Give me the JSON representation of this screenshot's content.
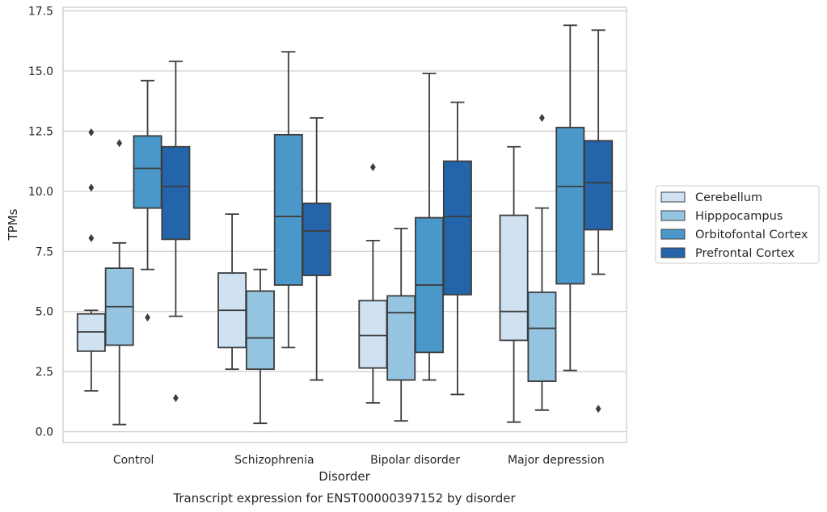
{
  "chart_data": {
    "type": "boxplot",
    "title": "Transcript expression for ENST00000397152 by disorder",
    "xlabel": "Disorder",
    "ylabel": "TPMs",
    "ylim": [
      -0.45,
      17.65
    ],
    "yticks": [
      0.0,
      2.5,
      5.0,
      7.5,
      10.0,
      12.5,
      15.0,
      17.5
    ],
    "ytick_labels": [
      "0.0",
      "2.5",
      "5.0",
      "7.5",
      "10.0",
      "12.5",
      "15.0",
      "17.5"
    ],
    "grid": "horizontal",
    "legend_position": "right",
    "categories": [
      "Control",
      "Schizophrenia",
      "Bipolar disorder",
      "Major depression"
    ],
    "series": [
      {
        "name": "Cerebellum",
        "color": "#d0e1f2",
        "boxes": [
          {
            "whislo": 1.7,
            "q1": 3.35,
            "med": 4.15,
            "q3": 4.9,
            "whishi": 5.05,
            "fliers": [
              8.05,
              10.15,
              12.45
            ]
          },
          {
            "whislo": 2.6,
            "q1": 3.5,
            "med": 5.05,
            "q3": 6.6,
            "whishi": 9.05,
            "fliers": []
          },
          {
            "whislo": 1.2,
            "q1": 2.65,
            "med": 4.0,
            "q3": 5.45,
            "whishi": 7.95,
            "fliers": [
              11.0
            ]
          },
          {
            "whislo": 0.4,
            "q1": 3.8,
            "med": 5.0,
            "q3": 9.0,
            "whishi": 11.85,
            "fliers": []
          }
        ]
      },
      {
        "name": "Hipppocampus",
        "color": "#94c4df",
        "boxes": [
          {
            "whislo": 0.3,
            "q1": 3.6,
            "med": 5.2,
            "q3": 6.8,
            "whishi": 7.85,
            "fliers": [
              12.0
            ]
          },
          {
            "whislo": 0.35,
            "q1": 2.6,
            "med": 3.9,
            "q3": 5.85,
            "whishi": 6.75,
            "fliers": []
          },
          {
            "whislo": 0.45,
            "q1": 2.15,
            "med": 4.95,
            "q3": 5.65,
            "whishi": 8.45,
            "fliers": []
          },
          {
            "whislo": 0.9,
            "q1": 2.1,
            "med": 4.3,
            "q3": 5.8,
            "whishi": 9.3,
            "fliers": [
              13.05
            ]
          }
        ]
      },
      {
        "name": "Orbitofontal Cortex",
        "color": "#4a98c9",
        "boxes": [
          {
            "whislo": 6.75,
            "q1": 9.3,
            "med": 10.95,
            "q3": 12.3,
            "whishi": 14.6,
            "fliers": [
              4.75
            ]
          },
          {
            "whislo": 3.5,
            "q1": 6.1,
            "med": 8.95,
            "q3": 12.35,
            "whishi": 15.8,
            "fliers": []
          },
          {
            "whislo": 2.15,
            "q1": 3.3,
            "med": 6.1,
            "q3": 8.9,
            "whishi": 14.9,
            "fliers": []
          },
          {
            "whislo": 2.55,
            "q1": 6.15,
            "med": 10.2,
            "q3": 12.65,
            "whishi": 16.9,
            "fliers": []
          }
        ]
      },
      {
        "name": "Prefrontal Cortex",
        "color": "#2464ab",
        "boxes": [
          {
            "whislo": 4.8,
            "q1": 8.0,
            "med": 10.2,
            "q3": 11.85,
            "whishi": 15.4,
            "fliers": [
              1.4
            ]
          },
          {
            "whislo": 2.15,
            "q1": 6.5,
            "med": 8.35,
            "q3": 9.5,
            "whishi": 13.05,
            "fliers": []
          },
          {
            "whislo": 1.55,
            "q1": 5.7,
            "med": 8.95,
            "q3": 11.25,
            "whishi": 13.7,
            "fliers": []
          },
          {
            "whislo": 6.55,
            "q1": 8.4,
            "med": 10.35,
            "q3": 12.1,
            "whishi": 16.7,
            "fliers": [
              0.95
            ]
          }
        ]
      }
    ]
  }
}
